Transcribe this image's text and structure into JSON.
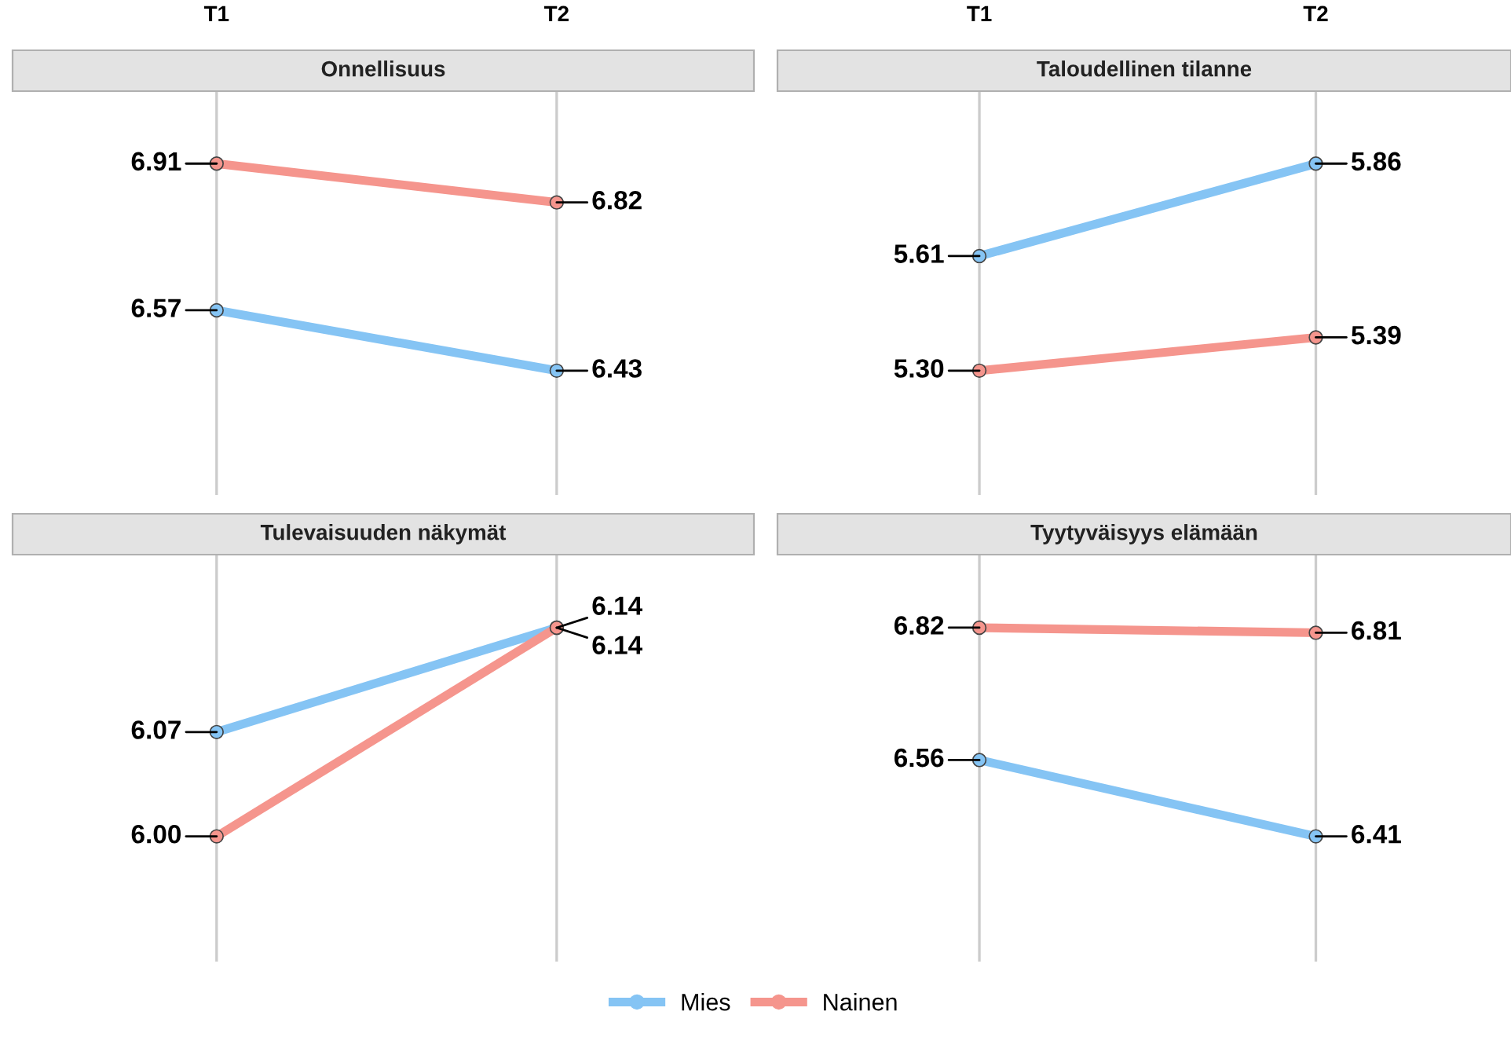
{
  "chart_data": [
    {
      "type": "line",
      "title": "Onnellisuus",
      "categories": [
        "T1",
        "T2"
      ],
      "tick_labels": "x",
      "grid": "x",
      "marker": "circle",
      "legend": "bottom",
      "series": [
        {
          "name": "Mies",
          "color": "#85c4f4",
          "values": [
            6.57,
            6.43
          ],
          "value_labels": [
            "6.57",
            "6.43"
          ]
        },
        {
          "name": "Nainen",
          "color": "#f5958d",
          "values": [
            6.91,
            6.82
          ],
          "value_labels": [
            "6.91",
            "6.82"
          ]
        }
      ]
    },
    {
      "type": "line",
      "title": "Taloudellinen tilanne",
      "categories": [
        "T1",
        "T2"
      ],
      "tick_labels": "x",
      "grid": "x",
      "marker": "circle",
      "series": [
        {
          "color": "#85c4f4",
          "values": [
            5.61,
            5.86
          ],
          "value_labels": [
            "5.61",
            "5.86"
          ]
        },
        {
          "color": "#f5958d",
          "values": [
            5.3,
            5.39
          ],
          "value_labels": [
            "5.30",
            "5.39"
          ]
        }
      ]
    },
    {
      "type": "line",
      "title": "Tulevaisuuden näkymät",
      "categories": [
        null,
        null
      ],
      "tick_labels": false,
      "grid": "x",
      "marker": "circle",
      "series": [
        {
          "color": "#85c4f4",
          "values": [
            6.07,
            6.14
          ],
          "value_labels": [
            "6.07",
            "6.14"
          ]
        },
        {
          "color": "#f5958d",
          "values": [
            6.0,
            6.14
          ],
          "value_labels": [
            "6.00",
            "6.14"
          ]
        }
      ]
    },
    {
      "type": "line",
      "title": "Tyytyväisyys elämään",
      "categories": [
        null,
        null
      ],
      "tick_labels": false,
      "grid": "x",
      "marker": "circle",
      "series": [
        {
          "color": "#85c4f4",
          "values": [
            6.56,
            6.41
          ],
          "value_labels": [
            "6.56",
            "6.41"
          ]
        },
        {
          "color": "#f5958d",
          "values": [
            6.82,
            6.81
          ],
          "value_labels": [
            "6.82",
            "6.81"
          ]
        }
      ]
    }
  ]
}
